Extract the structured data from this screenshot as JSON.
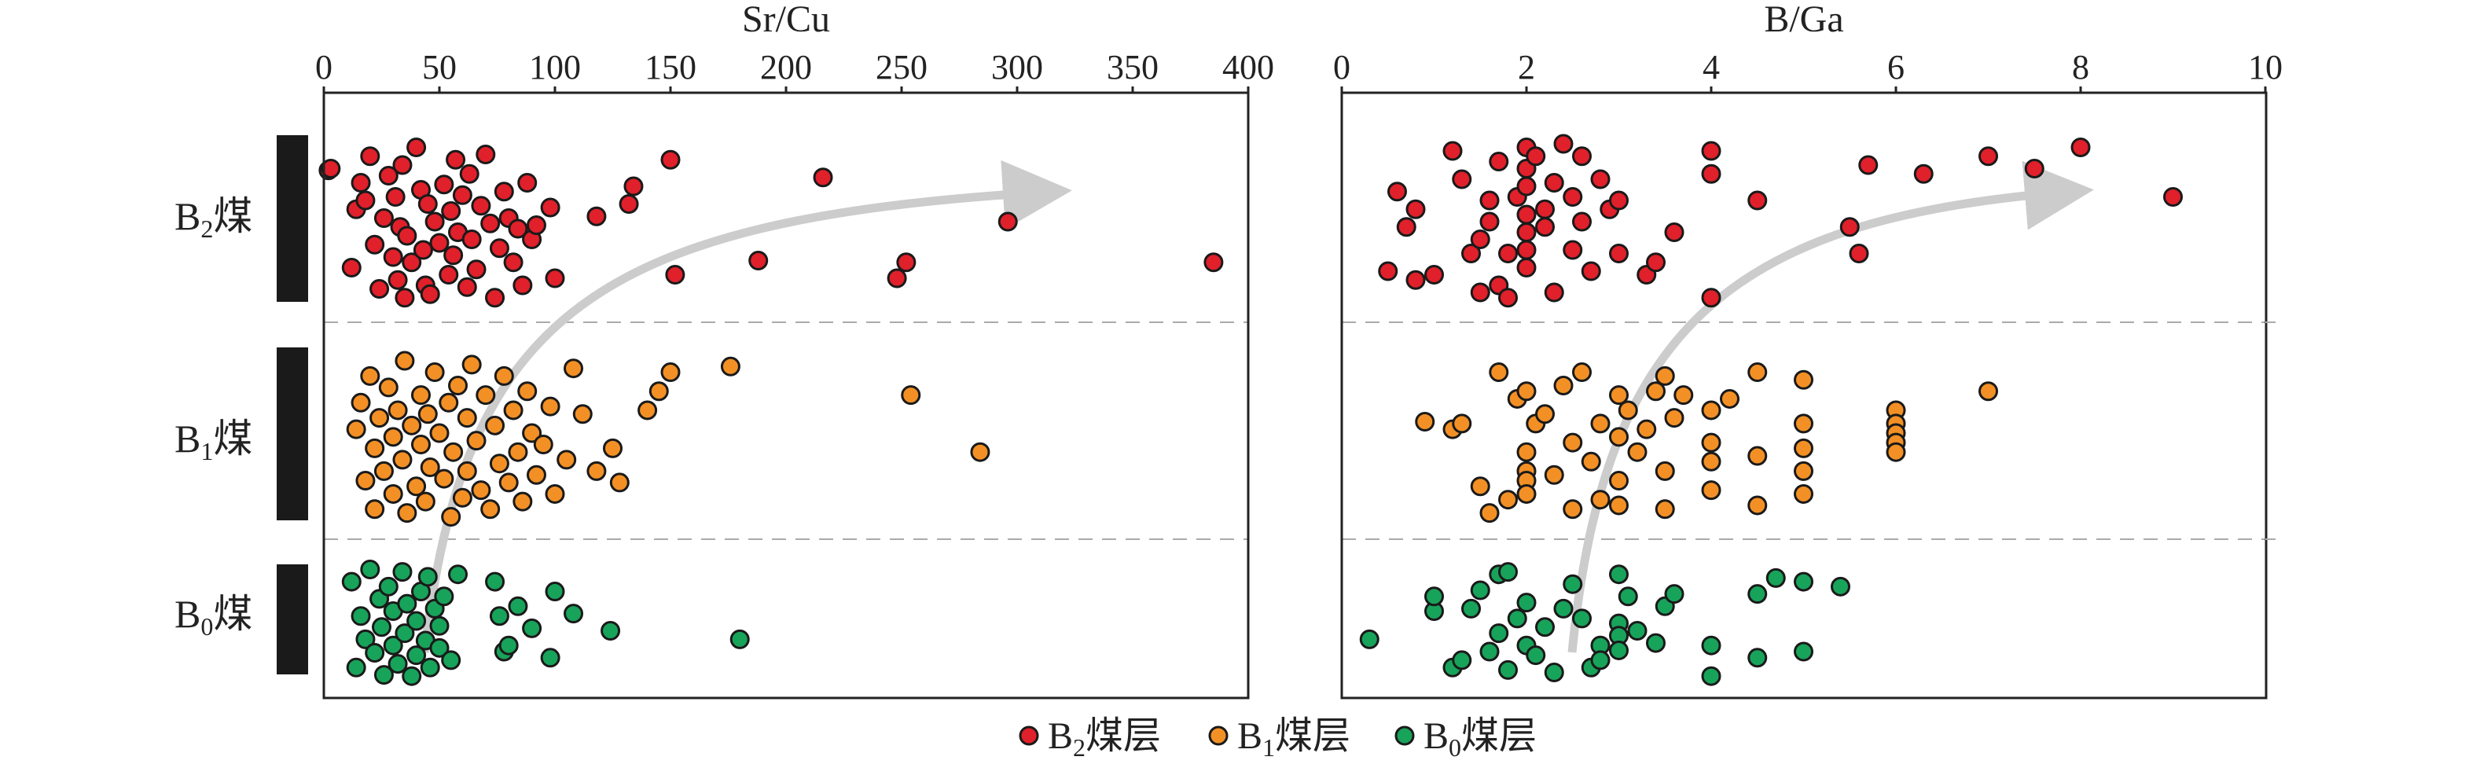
{
  "legend": {
    "items": [
      {
        "label": "B2煤层",
        "main": "B",
        "sub": "2",
        "rest": "煤层",
        "color": "#e0202a"
      },
      {
        "label": "B1煤层",
        "main": "B",
        "sub": "1",
        "rest": "煤层",
        "color": "#f39025"
      },
      {
        "label": "B0煤层",
        "main": "B",
        "sub": "0",
        "rest": "煤层",
        "color": "#18a35a"
      }
    ]
  },
  "seams": [
    {
      "label": "B2煤",
      "main": "B",
      "sub": "2",
      "rest": "煤"
    },
    {
      "label": "B1煤",
      "main": "B",
      "sub": "1",
      "rest": "煤"
    },
    {
      "label": "B0煤",
      "main": "B",
      "sub": "0",
      "rest": "煤"
    }
  ],
  "chart_data": [
    {
      "type": "scatter",
      "xlabel": "Sr/Cu",
      "xlim": [
        0,
        400
      ],
      "xticks": [
        0,
        50,
        100,
        150,
        200,
        250,
        300,
        350,
        400
      ],
      "ylabel": "",
      "series": [
        {
          "name": "B2煤层",
          "seam": "B2",
          "color": "#e0202a",
          "x": [
            2,
            3,
            12,
            14,
            16,
            18,
            20,
            22,
            24,
            26,
            28,
            30,
            31,
            32,
            33,
            34,
            35,
            36,
            38,
            40,
            42,
            43,
            44,
            45,
            46,
            48,
            50,
            52,
            54,
            55,
            56,
            57,
            58,
            60,
            62,
            63,
            64,
            66,
            68,
            70,
            72,
            74,
            76,
            78,
            80,
            82,
            84,
            86,
            88,
            90,
            92,
            98,
            100,
            118,
            132,
            134,
            150,
            152,
            188,
            216,
            248,
            252,
            296,
            385
          ],
          "y": [
            0.77,
            0.78,
            0.22,
            0.55,
            0.7,
            0.6,
            0.85,
            0.35,
            0.1,
            0.5,
            0.74,
            0.28,
            0.62,
            0.15,
            0.45,
            0.8,
            0.05,
            0.4,
            0.25,
            0.9,
            0.66,
            0.32,
            0.12,
            0.58,
            0.07,
            0.48,
            0.36,
            0.69,
            0.18,
            0.54,
            0.29,
            0.83,
            0.42,
            0.63,
            0.11,
            0.75,
            0.38,
            0.21,
            0.57,
            0.86,
            0.47,
            0.05,
            0.33,
            0.65,
            0.5,
            0.25,
            0.44,
            0.12,
            0.7,
            0.38,
            0.46,
            0.56,
            0.16,
            0.51,
            0.58,
            0.68,
            0.83,
            0.18,
            0.26,
            0.73,
            0.16,
            0.25,
            0.48,
            0.25
          ],
          "y_raw": [
            0.77,
            0.78,
            0.22,
            0.55,
            0.7,
            0.6,
            0.85,
            0.35,
            0.1,
            0.5,
            0.74,
            0.28,
            0.62,
            0.15,
            0.45,
            0.8,
            0.05,
            0.4,
            0.25,
            0.9,
            0.66,
            0.32,
            0.12,
            0.58,
            0.07,
            0.48,
            0.36,
            0.69,
            0.18,
            0.54,
            0.29,
            0.83,
            0.42,
            0.63,
            0.11,
            0.75,
            0.38,
            0.21,
            0.57,
            0.86,
            0.47,
            0.05,
            0.33,
            0.65,
            0.5,
            0.25,
            0.44,
            0.12,
            0.7,
            0.38,
            0.46,
            0.56,
            0.16,
            0.51,
            0.58,
            0.68,
            0.83,
            0.18,
            0.26,
            0.73,
            0.16,
            0.25,
            0.48,
            0.25
          ]
        },
        {
          "name": "B1煤层",
          "seam": "B1",
          "color": "#f39025",
          "x": [
            14,
            16,
            18,
            20,
            22,
            22,
            24,
            26,
            28,
            30,
            30,
            32,
            34,
            35,
            36,
            38,
            40,
            42,
            42,
            44,
            45,
            46,
            48,
            50,
            52,
            54,
            55,
            56,
            58,
            60,
            62,
            62,
            64,
            66,
            68,
            70,
            72,
            74,
            76,
            78,
            80,
            82,
            84,
            86,
            88,
            90,
            92,
            95,
            98,
            100,
            105,
            108,
            112,
            118,
            125,
            128,
            140,
            145,
            150,
            176,
            254,
            284
          ],
          "y": [
            0.52,
            0.66,
            0.25,
            0.8,
            0.1,
            0.42,
            0.58,
            0.3,
            0.74,
            0.18,
            0.48,
            0.62,
            0.36,
            0.88,
            0.08,
            0.54,
            0.22,
            0.7,
            0.44,
            0.14,
            0.6,
            0.32,
            0.82,
            0.5,
            0.26,
            0.66,
            0.06,
            0.4,
            0.75,
            0.16,
            0.58,
            0.3,
            0.86,
            0.46,
            0.2,
            0.7,
            0.1,
            0.54,
            0.34,
            0.8,
            0.24,
            0.62,
            0.4,
            0.14,
            0.72,
            0.5,
            0.28,
            0.44,
            0.64,
            0.18,
            0.36,
            0.84,
            0.6,
            0.3,
            0.42,
            0.24,
            0.62,
            0.72,
            0.82,
            0.85,
            0.7,
            0.4
          ]
        },
        {
          "name": "B0煤层",
          "seam": "B0",
          "color": "#18a35a",
          "x": [
            12,
            14,
            16,
            18,
            20,
            22,
            24,
            25,
            26,
            28,
            30,
            30,
            32,
            34,
            35,
            36,
            38,
            40,
            40,
            42,
            44,
            45,
            46,
            48,
            50,
            50,
            52,
            55,
            58,
            74,
            76,
            78,
            80,
            84,
            90,
            98,
            100,
            108,
            124,
            180
          ],
          "y": [
            0.82,
            0.12,
            0.54,
            0.35,
            0.92,
            0.24,
            0.68,
            0.45,
            0.06,
            0.78,
            0.3,
            0.58,
            0.15,
            0.9,
            0.4,
            0.64,
            0.05,
            0.5,
            0.22,
            0.74,
            0.34,
            0.86,
            0.12,
            0.6,
            0.28,
            0.46,
            0.7,
            0.18,
            0.88,
            0.82,
            0.54,
            0.25,
            0.3,
            0.62,
            0.44,
            0.2,
            0.74,
            0.56,
            0.42,
            0.35
          ]
        }
      ]
    },
    {
      "type": "scatter",
      "xlabel": "B/Ga",
      "xlim": [
        0,
        10
      ],
      "xticks": [
        0,
        2,
        4,
        6,
        8,
        10
      ],
      "ylabel": "",
      "series": [
        {
          "name": "B2煤层",
          "seam": "B2",
          "color": "#e0202a",
          "x": [
            0.5,
            0.6,
            0.7,
            0.8,
            0.8,
            1.0,
            1.2,
            1.3,
            1.4,
            1.5,
            1.5,
            1.6,
            1.6,
            1.7,
            1.7,
            1.8,
            1.8,
            1.9,
            2.0,
            2.0,
            2.0,
            2.0,
            2.0,
            2.0,
            2.0,
            2.1,
            2.2,
            2.2,
            2.3,
            2.3,
            2.4,
            2.5,
            2.5,
            2.6,
            2.6,
            2.7,
            2.8,
            2.9,
            3.0,
            3.0,
            3.3,
            3.4,
            3.6,
            4.0,
            4.0,
            4.0,
            4.5,
            5.5,
            5.6,
            5.7,
            6.3,
            7.0,
            7.5,
            8.0,
            9.0
          ],
          "y": [
            0.2,
            0.65,
            0.45,
            0.55,
            0.15,
            0.18,
            0.88,
            0.72,
            0.3,
            0.38,
            0.08,
            0.6,
            0.48,
            0.12,
            0.82,
            0.3,
            0.05,
            0.62,
            0.9,
            0.78,
            0.68,
            0.52,
            0.42,
            0.32,
            0.22,
            0.85,
            0.55,
            0.45,
            0.7,
            0.08,
            0.92,
            0.32,
            0.62,
            0.85,
            0.48,
            0.2,
            0.72,
            0.55,
            0.6,
            0.3,
            0.18,
            0.25,
            0.42,
            0.88,
            0.75,
            0.05,
            0.6,
            0.45,
            0.3,
            0.8,
            0.75,
            0.85,
            0.78,
            0.9,
            0.62
          ]
        },
        {
          "name": "B1煤层",
          "seam": "B1",
          "color": "#f39025",
          "x": [
            0.9,
            1.2,
            1.3,
            1.5,
            1.6,
            1.7,
            1.8,
            1.9,
            2.0,
            2.0,
            2.0,
            2.0,
            2.0,
            2.1,
            2.2,
            2.3,
            2.4,
            2.5,
            2.5,
            2.6,
            2.7,
            2.8,
            2.8,
            3.0,
            3.0,
            3.0,
            3.0,
            3.1,
            3.2,
            3.3,
            3.4,
            3.5,
            3.5,
            3.5,
            3.6,
            3.7,
            4.0,
            4.0,
            4.0,
            4.0,
            4.2,
            4.5,
            4.5,
            4.5,
            5.0,
            5.0,
            5.0,
            5.0,
            5.0,
            6.0,
            6.0,
            6.0,
            6.0,
            6.0,
            7.0
          ],
          "y": [
            0.56,
            0.52,
            0.55,
            0.22,
            0.08,
            0.82,
            0.15,
            0.68,
            0.72,
            0.4,
            0.3,
            0.25,
            0.18,
            0.55,
            0.6,
            0.28,
            0.75,
            0.1,
            0.45,
            0.82,
            0.35,
            0.55,
            0.15,
            0.7,
            0.48,
            0.25,
            0.12,
            0.62,
            0.4,
            0.52,
            0.72,
            0.8,
            0.3,
            0.1,
            0.58,
            0.7,
            0.62,
            0.45,
            0.35,
            0.2,
            0.68,
            0.82,
            0.38,
            0.12,
            0.78,
            0.55,
            0.42,
            0.3,
            0.18,
            0.62,
            0.55,
            0.5,
            0.45,
            0.4,
            0.72
          ]
        },
        {
          "name": "B0煤层",
          "seam": "B0",
          "color": "#18a35a",
          "x": [
            0.3,
            1.0,
            1.0,
            1.2,
            1.3,
            1.4,
            1.5,
            1.6,
            1.7,
            1.7,
            1.8,
            1.8,
            1.9,
            2.0,
            2.0,
            2.1,
            2.2,
            2.3,
            2.4,
            2.5,
            2.6,
            2.7,
            2.8,
            2.8,
            3.0,
            3.0,
            3.0,
            3.0,
            3.1,
            3.2,
            3.4,
            3.5,
            3.6,
            4.0,
            4.0,
            4.5,
            4.5,
            4.7,
            5.0,
            5.0,
            5.4
          ],
          "y": [
            0.35,
            0.58,
            0.7,
            0.12,
            0.18,
            0.6,
            0.75,
            0.25,
            0.88,
            0.4,
            0.9,
            0.1,
            0.52,
            0.65,
            0.3,
            0.22,
            0.45,
            0.08,
            0.6,
            0.8,
            0.52,
            0.12,
            0.3,
            0.18,
            0.48,
            0.38,
            0.26,
            0.88,
            0.7,
            0.42,
            0.32,
            0.62,
            0.72,
            0.3,
            0.05,
            0.72,
            0.2,
            0.85,
            0.82,
            0.25,
            0.78
          ]
        }
      ]
    }
  ]
}
